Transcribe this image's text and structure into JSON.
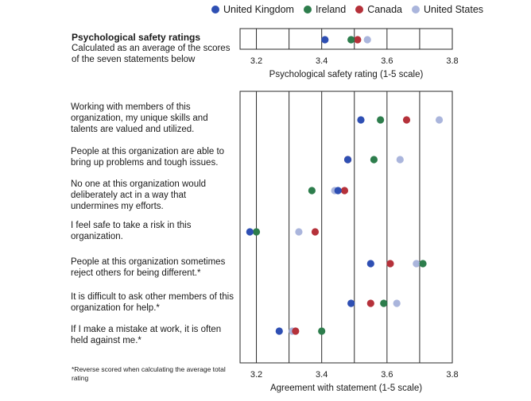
{
  "colors": {
    "United Kingdom": "#2e4fb3",
    "Ireland": "#2d7d4c",
    "Canada": "#b5313a",
    "United States": "#aab5dc"
  },
  "legend": [
    "United Kingdom",
    "Ireland",
    "Canada",
    "United States"
  ],
  "summary": {
    "title": "Psychological safety ratings",
    "subtitle": "Calculated as an average of the scores of the seven statements below"
  },
  "footnote": "*Reverse scored when calculating the average total rating",
  "chart_data": [
    {
      "type": "scatter",
      "xlabel": "Psychological safety rating (1-5 scale)",
      "xlim": [
        3.15,
        3.8
      ],
      "xticks": [
        "3.2",
        "3.4",
        "3.6",
        "3.8"
      ],
      "grid": true,
      "rows": [
        {
          "label": "Psychological safety ratings",
          "values": {
            "United Kingdom": 3.41,
            "Ireland": 3.49,
            "Canada": 3.51,
            "United States": 3.54
          }
        }
      ]
    },
    {
      "type": "scatter",
      "xlabel": "Agreement with statement (1-5 scale)",
      "xlim": [
        3.15,
        3.8
      ],
      "xticks": [
        "3.2",
        "3.4",
        "3.6",
        "3.8"
      ],
      "grid": true,
      "rows": [
        {
          "label": "Working with members of this organization, my unique skills and talents are valued and utilized.",
          "values": {
            "United Kingdom": 3.52,
            "Ireland": 3.58,
            "Canada": 3.66,
            "United States": 3.76
          }
        },
        {
          "label": "People at this organization are able to bring up problems and tough issues.",
          "values": {
            "United Kingdom": 3.48,
            "Ireland": 3.56,
            "Canada": 3.48,
            "United States": 3.64
          }
        },
        {
          "label": "No one at this organization would deliberately act in a way that undermines my efforts.",
          "values": {
            "United Kingdom": 3.45,
            "Ireland": 3.37,
            "Canada": 3.47,
            "United States": 3.44
          }
        },
        {
          "label": "I feel safe to take a risk in this organization.",
          "values": {
            "United Kingdom": 3.18,
            "Ireland": 3.2,
            "Canada": 3.38,
            "United States": 3.33
          }
        },
        {
          "label": "People at this organization sometimes reject others for being different.*",
          "values": {
            "United Kingdom": 3.55,
            "Ireland": 3.71,
            "Canada": 3.61,
            "United States": 3.69
          }
        },
        {
          "label": "It is difficult to ask other members of this organization for help.*",
          "values": {
            "United Kingdom": 3.49,
            "Ireland": 3.59,
            "Canada": 3.55,
            "United States": 3.63
          }
        },
        {
          "label": "If I make a mistake at work, it is often held against me.*",
          "values": {
            "United Kingdom": 3.27,
            "Ireland": 3.4,
            "Canada": 3.32,
            "United States": 3.31
          }
        }
      ]
    }
  ]
}
